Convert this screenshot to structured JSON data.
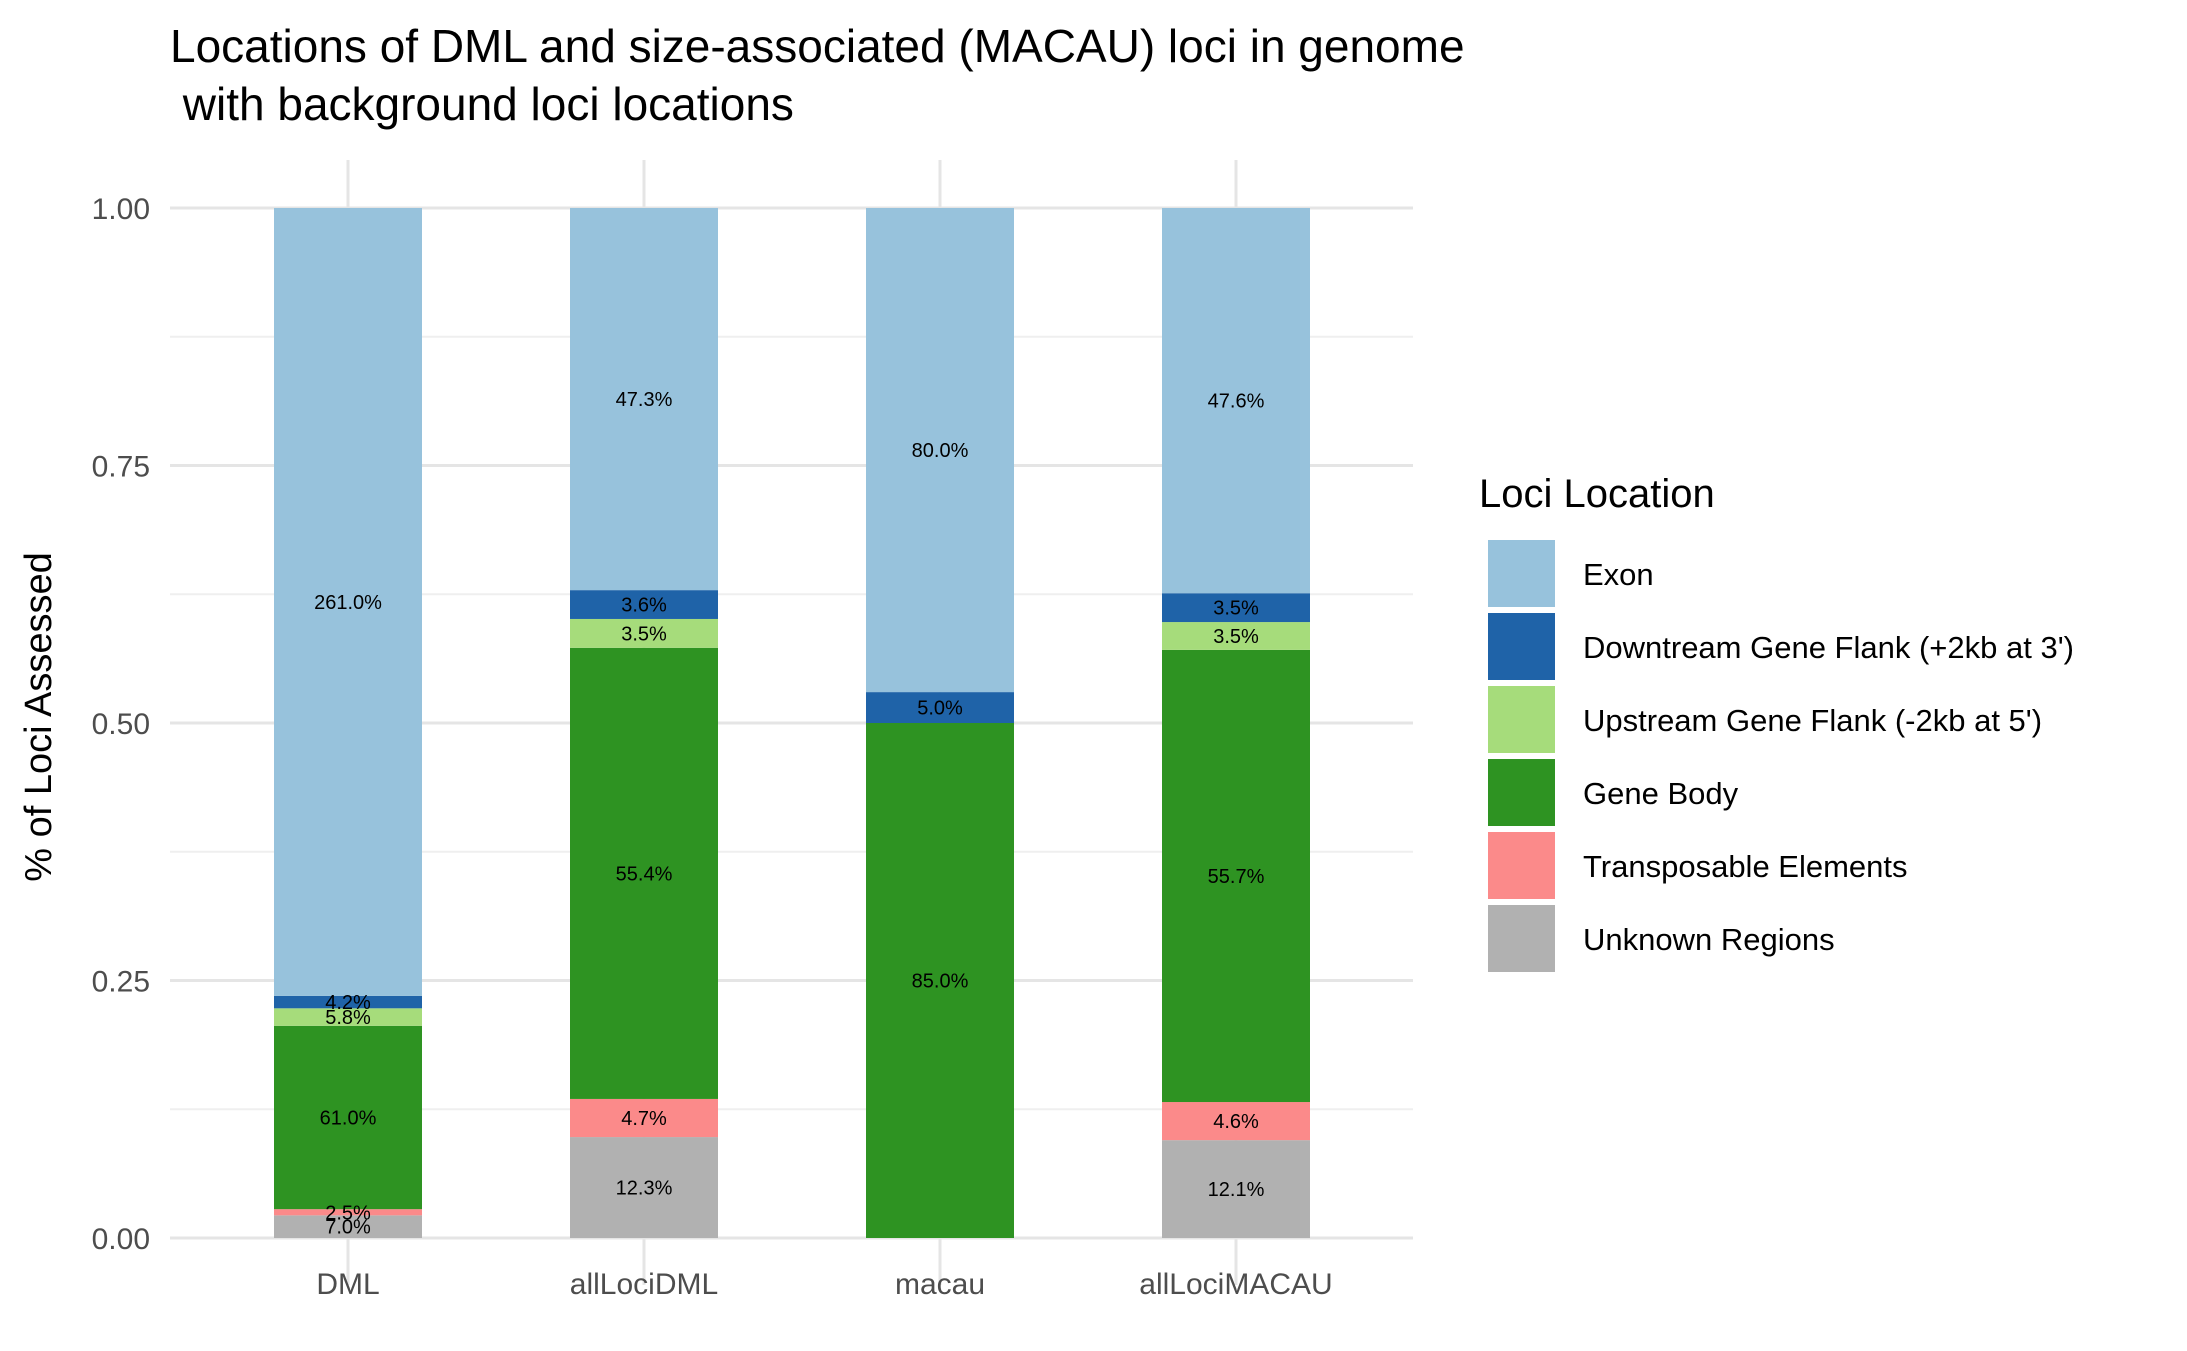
{
  "chart_data": {
    "type": "bar",
    "stacked": true,
    "title_line1": "Locations of DML and size-associated (MACAU) loci in genome",
    "title_line2": " with background loci locations",
    "xlabel": "",
    "ylabel": "% of Loci Assessed",
    "ylim": [
      0,
      1
    ],
    "y_ticks": [
      0,
      0.25,
      0.5,
      0.75,
      1.0
    ],
    "y_tick_labels": [
      "0.00",
      "0.25",
      "0.50",
      "0.75",
      "1.00"
    ],
    "categories": [
      "DML",
      "allLociDML",
      "macau",
      "allLociMACAU"
    ],
    "grid": true,
    "legend": {
      "title": "Loci Location",
      "position": "right"
    },
    "series": [
      {
        "name": "Unknown Regions",
        "color": "#b1b1b1",
        "values": [
          0.022,
          0.098,
          0.0,
          0.095
        ],
        "labels": [
          "7.0%",
          "12.3%",
          "",
          "12.1%"
        ]
      },
      {
        "name": "Transposable Elements",
        "color": "#fb8a8a",
        "values": [
          0.006,
          0.037,
          0.0,
          0.037
        ],
        "labels": [
          "2.5%",
          "4.7%",
          "",
          "4.6%"
        ]
      },
      {
        "name": "Gene Body",
        "color": "#2e9322",
        "values": [
          0.178,
          0.438,
          0.5,
          0.439
        ],
        "labels": [
          "61.0%",
          "55.4%",
          "85.0%",
          "55.7%"
        ]
      },
      {
        "name": "Upstream Gene Flank (-2kb at 5')",
        "color": "#a6dc7b",
        "values": [
          0.017,
          0.028,
          0.0,
          0.027
        ],
        "labels": [
          "5.8%",
          "3.5%",
          "",
          "3.5%"
        ]
      },
      {
        "name": "Downtream Gene Flank (+2kb at 3')",
        "color": "#1f63a8",
        "values": [
          0.012,
          0.028,
          0.03,
          0.028
        ],
        "labels": [
          "4.2%",
          "3.6%",
          "5.0%",
          "3.5%"
        ]
      },
      {
        "name": "Exon",
        "color": "#97c2dc",
        "values": [
          0.765,
          0.371,
          0.47,
          0.374
        ],
        "labels": [
          "261.0%",
          "47.3%",
          "80.0%",
          "47.6%"
        ]
      }
    ],
    "legend_order": [
      "Exon",
      "Downtream Gene Flank (+2kb at 3')",
      "Upstream Gene Flank (-2kb at 5')",
      "Gene Body",
      "Transposable Elements",
      "Unknown Regions"
    ]
  }
}
